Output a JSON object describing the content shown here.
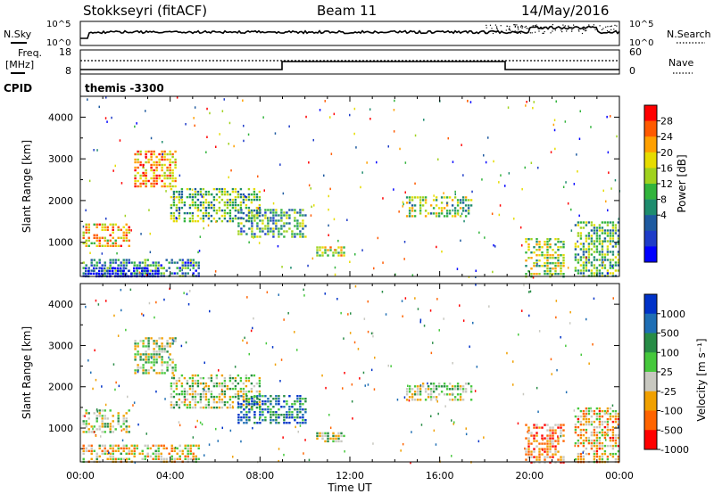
{
  "header": {
    "station": "Stokkseyri (fitACF)",
    "beam": "Beam 11",
    "date": "14/May/2016"
  },
  "noise_panel": {
    "left_label": "N.Sky",
    "right_label": "N.Search",
    "left_ticks": [
      "10^5",
      "10^0"
    ],
    "right_ticks": [
      "10^5",
      "10^0"
    ]
  },
  "freq_panel": {
    "left_label_line1": "Freq.",
    "left_label_line2": "[MHz]",
    "left_ticks": [
      "18",
      "8"
    ],
    "right_label": "Nave",
    "right_ticks": [
      "60",
      "0"
    ],
    "cpid_label": "CPID",
    "cpid_text": "themis -3300"
  },
  "chart_data": [
    {
      "type": "heatmap",
      "name": "power",
      "ylabel": "Slant Range [km]",
      "xlabel": "",
      "ylim": [
        180,
        4500
      ],
      "xlim_hours": [
        0,
        24
      ],
      "colorbar_label": "Power [dB]",
      "colorbar_ticks": [
        "28",
        "24",
        "20",
        "16",
        "12",
        "8",
        "4"
      ],
      "colorbar_colors": [
        "#ff0000",
        "#ff5a00",
        "#ffa000",
        "#e6dc00",
        "#a0d21e",
        "#32b43c",
        "#1e8c6e",
        "#1e5aa0",
        "#1e3cc8",
        "#0000ff"
      ],
      "regions": [
        {
          "t": [
            0.1,
            5.3
          ],
          "r": [
            180,
            600
          ],
          "level": 0.7
        },
        {
          "t": [
            0.2,
            3.5
          ],
          "r": [
            180,
            400
          ],
          "level": 0.95
        },
        {
          "t": [
            0.1,
            2.2
          ],
          "r": [
            900,
            1450
          ],
          "level": 0.3
        },
        {
          "t": [
            2.4,
            4.2
          ],
          "r": [
            2350,
            3200
          ],
          "level": 0.25
        },
        {
          "t": [
            4.0,
            8.0
          ],
          "r": [
            1500,
            2300
          ],
          "level": 0.55
        },
        {
          "t": [
            7.0,
            10.0
          ],
          "r": [
            1150,
            1800
          ],
          "level": 0.6
        },
        {
          "t": [
            10.5,
            11.8
          ],
          "r": [
            700,
            900
          ],
          "level": 0.4
        },
        {
          "t": [
            14.5,
            17.4
          ],
          "r": [
            1650,
            2100
          ],
          "level": 0.5
        },
        {
          "t": [
            19.8,
            21.5
          ],
          "r": [
            180,
            1100
          ],
          "level": 0.45
        },
        {
          "t": [
            22.0,
            24.0
          ],
          "r": [
            180,
            1500
          ],
          "level": 0.55
        }
      ]
    },
    {
      "type": "heatmap",
      "name": "velocity",
      "ylabel": "Slant Range [km]",
      "xlabel": "Time UT",
      "ylim": [
        180,
        4500
      ],
      "xlim_hours": [
        0,
        24
      ],
      "colorbar_label": "Velocity [m s⁻¹]",
      "colorbar_ticks": [
        "1000",
        "500",
        "100",
        "25",
        "-25",
        "-100",
        "-500",
        "-1000"
      ],
      "colorbar_colors": [
        "#0032c8",
        "#1e6eb4",
        "#288c46",
        "#46c83c",
        "#c8c8c0",
        "#f0a000",
        "#ff6400",
        "#ff0000"
      ],
      "regions": [
        {
          "t": [
            0.1,
            5.3
          ],
          "r": [
            180,
            600
          ],
          "level": 0.62
        },
        {
          "t": [
            0.1,
            2.2
          ],
          "r": [
            900,
            1450
          ],
          "level": 0.5
        },
        {
          "t": [
            2.4,
            4.2
          ],
          "r": [
            2350,
            3200
          ],
          "level": 0.5
        },
        {
          "t": [
            4.0,
            8.0
          ],
          "r": [
            1500,
            2300
          ],
          "level": 0.5
        },
        {
          "t": [
            7.0,
            10.0
          ],
          "r": [
            1150,
            1800
          ],
          "level": 0.2
        },
        {
          "t": [
            10.5,
            11.8
          ],
          "r": [
            700,
            900
          ],
          "level": 0.5
        },
        {
          "t": [
            14.5,
            17.4
          ],
          "r": [
            1650,
            2100
          ],
          "level": 0.5
        },
        {
          "t": [
            19.8,
            21.5
          ],
          "r": [
            180,
            1100
          ],
          "level": 0.75
        },
        {
          "t": [
            22.0,
            24.0
          ],
          "r": [
            180,
            1500
          ],
          "level": 0.65
        }
      ]
    }
  ],
  "x_axis": {
    "ticks": [
      "00:00",
      "04:00",
      "08:00",
      "12:00",
      "16:00",
      "20:00",
      "00:00"
    ],
    "label": "Time UT"
  },
  "y_ticks": [
    "4000",
    "3000",
    "2000",
    "1000"
  ]
}
